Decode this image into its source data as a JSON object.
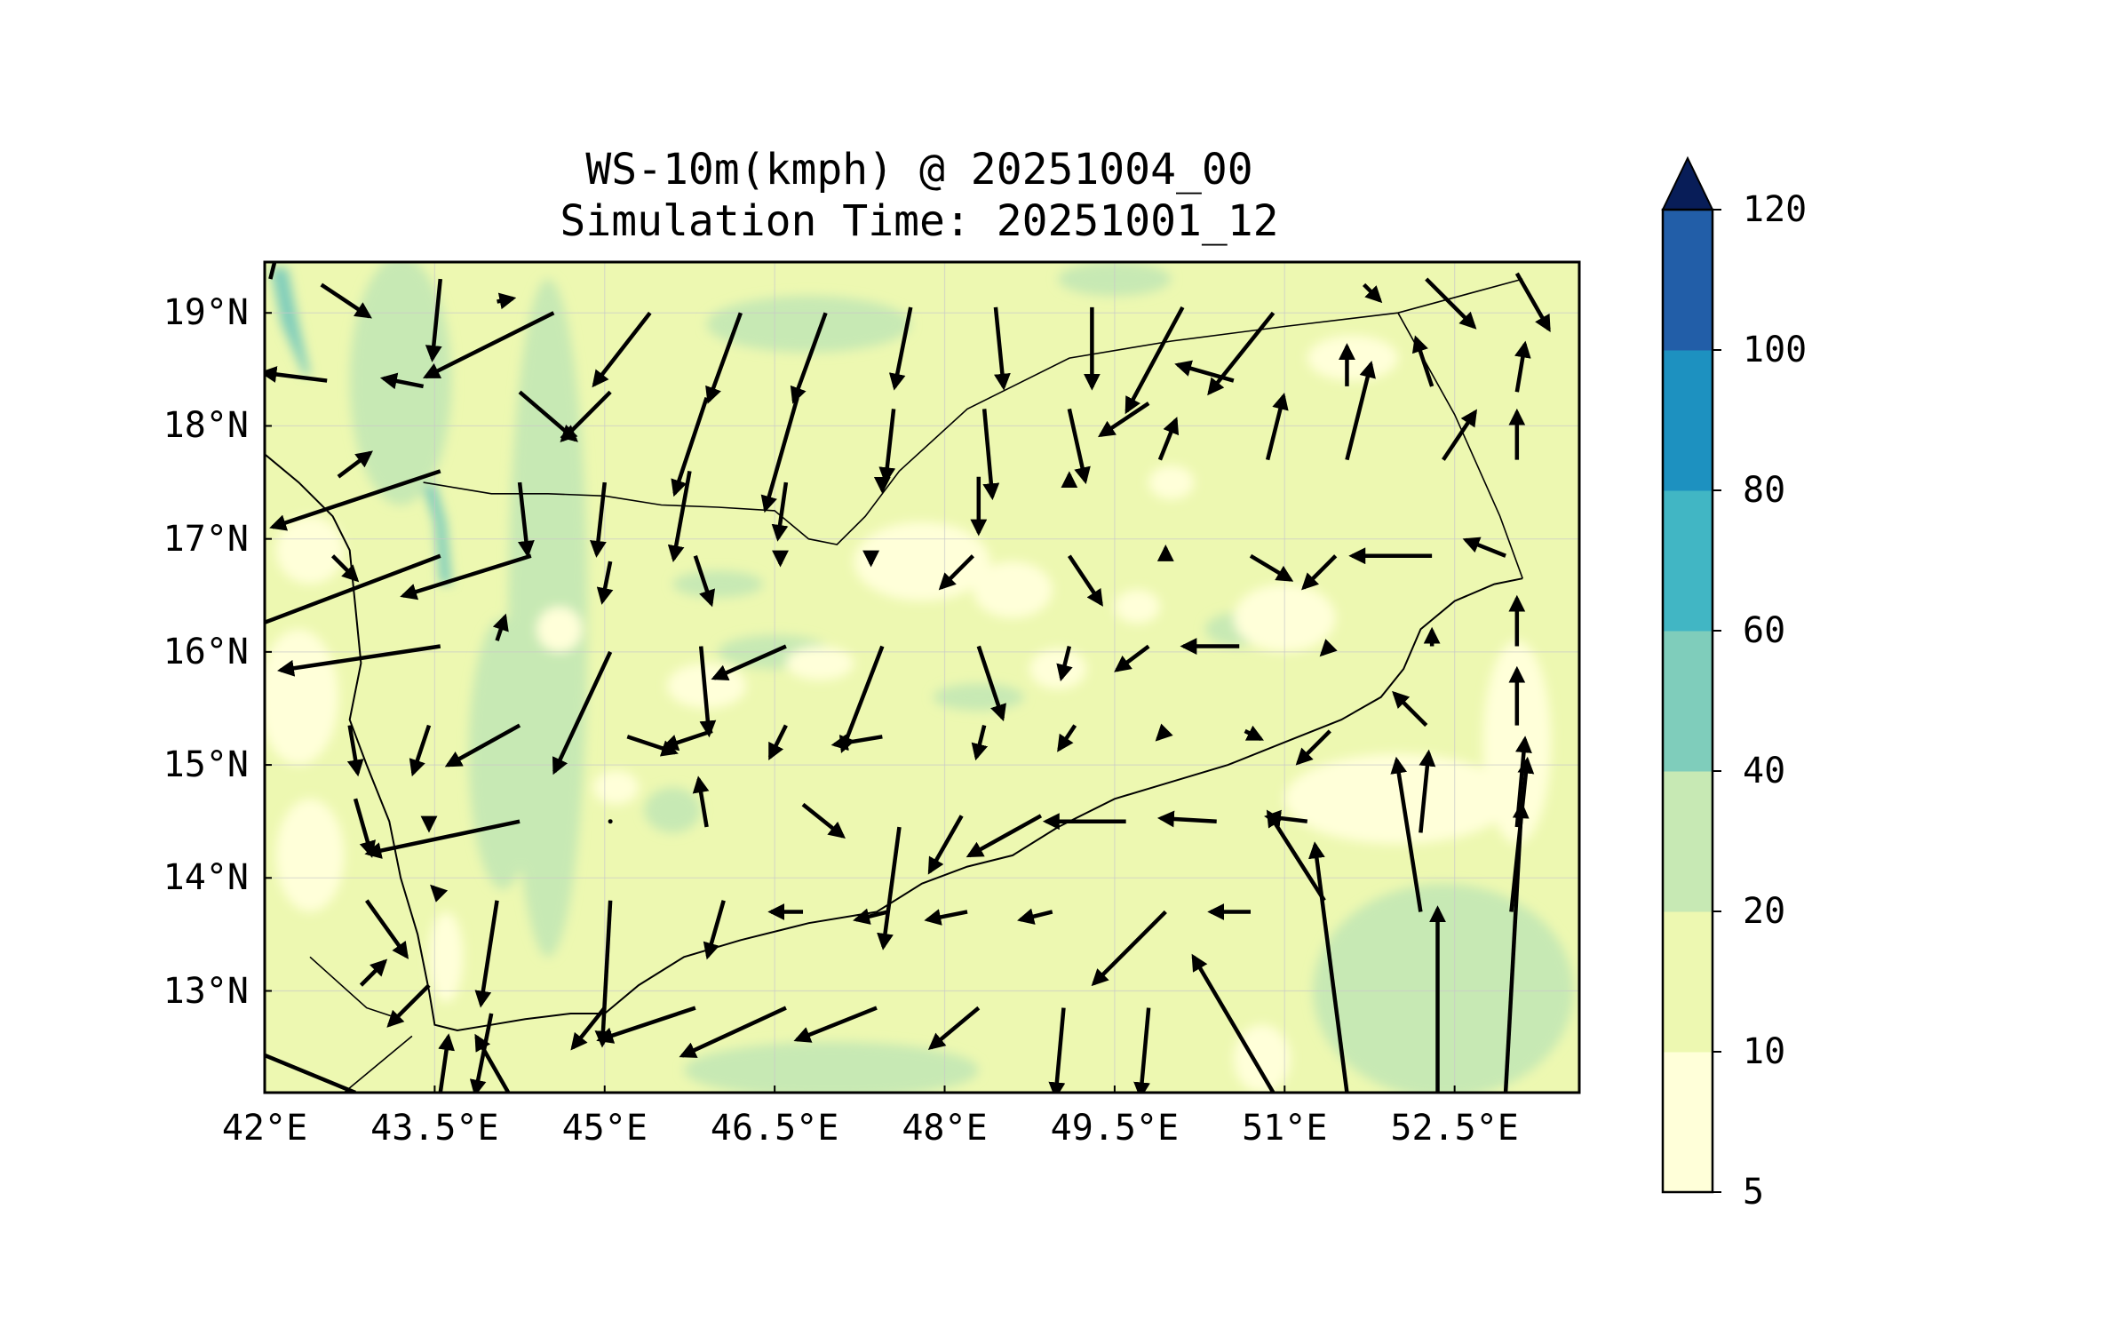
{
  "map": {
    "title": "WS-10m(kmph) @ 20251004_00",
    "subtitle": "Simulation Time: 20251001_12",
    "variable": "10 m wind speed",
    "units": "kmph",
    "valid_time": "20251004_00",
    "simulation_time": "20251001_12",
    "extent": {
      "lon_min": 42.0,
      "lon_max": 53.6,
      "lat_min": 12.1,
      "lat_max": 19.45
    },
    "x_ticks": [
      {
        "value": 42.0,
        "label": "42°E"
      },
      {
        "value": 43.5,
        "label": "43.5°E"
      },
      {
        "value": 45.0,
        "label": "45°E"
      },
      {
        "value": 46.5,
        "label": "46.5°E"
      },
      {
        "value": 48.0,
        "label": "48°E"
      },
      {
        "value": 49.5,
        "label": "49.5°E"
      },
      {
        "value": 51.0,
        "label": "51°E"
      },
      {
        "value": 52.5,
        "label": "52.5°E"
      }
    ],
    "y_ticks": [
      {
        "value": 19,
        "label": "19°N"
      },
      {
        "value": 18,
        "label": "18°N"
      },
      {
        "value": 17,
        "label": "17°N"
      },
      {
        "value": 16,
        "label": "16°N"
      },
      {
        "value": 15,
        "label": "15°N"
      },
      {
        "value": 14,
        "label": "14°N"
      },
      {
        "value": 13,
        "label": "13°N"
      }
    ],
    "gridlines": true,
    "colorbar": {
      "position": "right",
      "extend": "max",
      "levels": [
        5,
        10,
        20,
        40,
        60,
        80,
        100,
        120
      ],
      "labels": [
        "5",
        "10",
        "20",
        "40",
        "60",
        "80",
        "100",
        "120"
      ],
      "colors": [
        "#ffffd9",
        "#edf8b1",
        "#c7e9b4",
        "#7fcdbb",
        "#41b6c4",
        "#1d91c0",
        "#225ea8",
        "#253494"
      ],
      "over_color": "#081d58"
    },
    "palette": {
      "c5": "#ffffd9",
      "c10": "#edf8b1",
      "c20": "#c7e9b4",
      "c40": "#7fcdbb",
      "c60": "#41b6c4"
    },
    "coastline": [
      [
        42.0,
        17.75
      ],
      [
        42.3,
        17.5
      ],
      [
        42.6,
        17.2
      ],
      [
        42.75,
        16.9
      ],
      [
        42.8,
        16.4
      ],
      [
        42.85,
        15.9
      ],
      [
        42.75,
        15.4
      ],
      [
        42.9,
        15.0
      ],
      [
        43.1,
        14.5
      ],
      [
        43.2,
        14.0
      ],
      [
        43.35,
        13.5
      ],
      [
        43.45,
        13.0
      ],
      [
        43.5,
        12.7
      ],
      [
        43.7,
        12.65
      ],
      [
        44.0,
        12.7
      ],
      [
        44.3,
        12.75
      ],
      [
        44.7,
        12.8
      ],
      [
        45.0,
        12.8
      ],
      [
        45.3,
        13.05
      ],
      [
        45.7,
        13.3
      ],
      [
        46.2,
        13.45
      ],
      [
        46.8,
        13.6
      ],
      [
        47.4,
        13.7
      ],
      [
        47.8,
        13.95
      ],
      [
        48.2,
        14.1
      ],
      [
        48.6,
        14.2
      ],
      [
        49.0,
        14.45
      ],
      [
        49.5,
        14.7
      ],
      [
        50.0,
        14.85
      ],
      [
        50.5,
        15.0
      ],
      [
        51.0,
        15.2
      ],
      [
        51.5,
        15.4
      ],
      [
        51.85,
        15.6
      ],
      [
        52.05,
        15.85
      ],
      [
        52.2,
        16.2
      ],
      [
        52.5,
        16.45
      ],
      [
        52.85,
        16.6
      ],
      [
        53.1,
        16.65
      ]
    ],
    "borders": [
      [
        [
          43.4,
          17.5
        ],
        [
          43.7,
          17.45
        ],
        [
          44.0,
          17.4
        ],
        [
          44.5,
          17.4
        ],
        [
          45.0,
          17.38
        ],
        [
          45.5,
          17.3
        ],
        [
          46.0,
          17.28
        ],
        [
          46.5,
          17.25
        ],
        [
          46.8,
          17.0
        ],
        [
          47.05,
          16.95
        ],
        [
          47.3,
          17.2
        ],
        [
          47.6,
          17.6
        ],
        [
          48.2,
          18.15
        ],
        [
          49.1,
          18.6
        ],
        [
          50.0,
          18.75
        ],
        [
          51.0,
          18.88
        ],
        [
          52.0,
          19.0
        ],
        [
          53.1,
          19.3
        ]
      ],
      [
        [
          52.0,
          19.0
        ],
        [
          52.5,
          18.1
        ],
        [
          52.9,
          17.2
        ],
        [
          53.1,
          16.65
        ]
      ],
      [
        [
          42.7,
          12.1
        ],
        [
          43.3,
          12.6
        ]
      ],
      [
        [
          42.4,
          13.3
        ],
        [
          42.9,
          12.85
        ],
        [
          43.2,
          12.75
        ]
      ]
    ],
    "wind_arrows_note": "direction and magnitude of 10 m wind vectors",
    "wind_vectors": [
      [
        42.05,
        19.3,
        0.1,
        0.4
      ],
      [
        42.5,
        19.25,
        0.3,
        -0.2
      ],
      [
        43.55,
        19.3,
        -0.05,
        -0.5
      ],
      [
        44.05,
        19.1,
        0.1,
        0.02
      ],
      [
        44.55,
        19.0,
        -0.8,
        -0.4
      ],
      [
        45.4,
        19.0,
        -0.35,
        -0.45
      ],
      [
        46.2,
        19.0,
        -0.2,
        -0.55
      ],
      [
        46.95,
        19.0,
        -0.2,
        -0.55
      ],
      [
        47.7,
        19.05,
        -0.1,
        -0.5
      ],
      [
        48.45,
        19.05,
        0.05,
        -0.5
      ],
      [
        49.3,
        19.05,
        0.0,
        -0.5
      ],
      [
        50.1,
        19.05,
        -0.35,
        -0.65
      ],
      [
        50.9,
        19.0,
        -0.4,
        -0.5
      ],
      [
        51.7,
        19.25,
        0.1,
        -0.1
      ],
      [
        52.25,
        19.3,
        0.3,
        -0.3
      ],
      [
        53.05,
        19.35,
        0.2,
        -0.35
      ],
      [
        42.55,
        18.4,
        -0.4,
        0.05
      ],
      [
        43.4,
        18.35,
        -0.25,
        0.05
      ],
      [
        44.25,
        18.3,
        0.35,
        -0.3
      ],
      [
        45.05,
        18.3,
        -0.3,
        -0.3
      ],
      [
        45.9,
        18.25,
        -0.2,
        -0.6
      ],
      [
        46.7,
        18.25,
        -0.2,
        -0.7
      ],
      [
        47.55,
        18.15,
        -0.05,
        -0.45
      ],
      [
        48.35,
        18.15,
        0.05,
        -0.55
      ],
      [
        49.1,
        18.15,
        0.1,
        -0.45
      ],
      [
        49.8,
        18.2,
        -0.3,
        -0.2
      ],
      [
        50.55,
        18.4,
        -0.35,
        0.1
      ],
      [
        51.55,
        18.35,
        0.0,
        0.25
      ],
      [
        52.3,
        18.35,
        -0.1,
        0.3
      ],
      [
        53.05,
        18.3,
        0.05,
        0.3
      ],
      [
        42.65,
        17.55,
        0.2,
        0.15
      ],
      [
        43.55,
        17.6,
        -1.05,
        -0.35
      ],
      [
        44.25,
        17.5,
        0.05,
        -0.45
      ],
      [
        45.0,
        17.5,
        -0.05,
        -0.45
      ],
      [
        45.75,
        17.6,
        -0.1,
        -0.55
      ],
      [
        46.6,
        17.5,
        -0.05,
        -0.35
      ],
      [
        47.45,
        17.5,
        0.0,
        -0.05
      ],
      [
        48.3,
        17.55,
        0.0,
        -0.35
      ],
      [
        49.1,
        17.5,
        0.0,
        0.05
      ],
      [
        49.9,
        17.7,
        0.1,
        0.25
      ],
      [
        50.85,
        17.7,
        0.1,
        0.4
      ],
      [
        51.55,
        17.7,
        0.15,
        0.6
      ],
      [
        52.4,
        17.7,
        0.2,
        0.3
      ],
      [
        53.05,
        17.7,
        0.0,
        0.3
      ],
      [
        42.6,
        16.85,
        0.15,
        -0.15
      ],
      [
        43.55,
        16.85,
        -1.45,
        -0.55
      ],
      [
        44.35,
        16.85,
        -0.8,
        -0.25
      ],
      [
        45.05,
        16.8,
        -0.05,
        -0.25
      ],
      [
        45.8,
        16.85,
        0.1,
        -0.3
      ],
      [
        46.55,
        16.85,
        0.0,
        -0.05
      ],
      [
        47.35,
        16.85,
        0.0,
        -0.05
      ],
      [
        48.25,
        16.85,
        -0.2,
        -0.2
      ],
      [
        49.1,
        16.85,
        0.2,
        -0.3
      ],
      [
        49.95,
        16.85,
        0.0,
        0.05
      ],
      [
        50.7,
        16.85,
        0.25,
        -0.15
      ],
      [
        51.45,
        16.85,
        -0.2,
        -0.2
      ],
      [
        52.3,
        16.85,
        -0.5,
        0.0
      ],
      [
        52.95,
        16.85,
        -0.25,
        0.1
      ],
      [
        43.55,
        16.05,
        -1.0,
        -0.15
      ],
      [
        44.05,
        16.1,
        0.05,
        0.15
      ],
      [
        45.05,
        16.0,
        -0.35,
        -0.75
      ],
      [
        45.85,
        16.05,
        0.05,
        -0.55
      ],
      [
        46.6,
        16.05,
        -0.45,
        -0.2
      ],
      [
        47.45,
        16.05,
        -0.25,
        -0.65
      ],
      [
        48.3,
        16.05,
        0.15,
        -0.45
      ],
      [
        49.1,
        16.05,
        -0.05,
        -0.2
      ],
      [
        49.8,
        16.05,
        -0.2,
        -0.15
      ],
      [
        50.6,
        16.05,
        -0.35,
        0.0
      ],
      [
        51.4,
        16.05,
        -0.05,
        -0.05
      ],
      [
        52.3,
        16.05,
        0.0,
        0.1
      ],
      [
        53.05,
        16.05,
        0.0,
        0.3
      ],
      [
        42.75,
        15.35,
        0.05,
        -0.3
      ],
      [
        43.45,
        15.35,
        -0.1,
        -0.3
      ],
      [
        44.25,
        15.35,
        -0.45,
        -0.25
      ],
      [
        45.2,
        15.25,
        0.3,
        -0.1
      ],
      [
        45.95,
        15.3,
        -0.3,
        -0.1
      ],
      [
        46.6,
        15.35,
        -0.1,
        -0.2
      ],
      [
        47.45,
        15.25,
        -0.3,
        -0.05
      ],
      [
        48.35,
        15.35,
        -0.05,
        -0.2
      ],
      [
        49.15,
        15.35,
        -0.1,
        -0.15
      ],
      [
        49.95,
        15.3,
        -0.05,
        -0.05
      ],
      [
        50.65,
        15.3,
        0.1,
        -0.05
      ],
      [
        51.4,
        15.3,
        -0.2,
        -0.2
      ],
      [
        52.25,
        15.35,
        -0.2,
        0.2
      ],
      [
        53.05,
        15.35,
        0.0,
        0.35
      ],
      [
        42.8,
        14.7,
        0.1,
        -0.35
      ],
      [
        43.45,
        14.5,
        0.0,
        -0.05
      ],
      [
        44.25,
        14.5,
        -0.95,
        -0.2
      ],
      [
        45.05,
        14.5,
        0.0,
        0.0
      ],
      [
        45.9,
        14.45,
        -0.05,
        0.3
      ],
      [
        46.75,
        14.65,
        0.25,
        -0.2
      ],
      [
        47.6,
        14.45,
        -0.1,
        -0.75
      ],
      [
        48.15,
        14.55,
        -0.2,
        -0.35
      ],
      [
        48.85,
        14.55,
        -0.45,
        -0.25
      ],
      [
        49.6,
        14.5,
        -0.5,
        0.0
      ],
      [
        50.4,
        14.5,
        -0.35,
        0.02
      ],
      [
        51.2,
        14.5,
        -0.25,
        0.03
      ],
      [
        52.2,
        14.4,
        0.05,
        0.5
      ],
      [
        53.05,
        14.45,
        0.05,
        0.55
      ],
      [
        42.9,
        13.8,
        0.25,
        -0.35
      ],
      [
        43.55,
        13.85,
        -0.05,
        0.05
      ],
      [
        44.05,
        13.8,
        -0.1,
        -0.65
      ],
      [
        45.05,
        13.8,
        -0.05,
        -0.9
      ],
      [
        46.05,
        13.8,
        -0.1,
        -0.35
      ],
      [
        46.75,
        13.7,
        -0.2,
        0.0
      ],
      [
        47.5,
        13.7,
        -0.2,
        -0.05
      ],
      [
        48.2,
        13.7,
        -0.25,
        -0.05
      ],
      [
        48.95,
        13.7,
        -0.2,
        -0.05
      ],
      [
        49.95,
        13.7,
        -0.45,
        -0.45
      ],
      [
        50.7,
        13.7,
        -0.25,
        0.0
      ],
      [
        51.35,
        13.8,
        -0.35,
        0.55
      ],
      [
        52.2,
        13.7,
        -0.15,
        0.95
      ],
      [
        53.0,
        13.7,
        0.1,
        0.95
      ],
      [
        42.85,
        13.05,
        0.15,
        0.15
      ],
      [
        43.45,
        13.05,
        -0.25,
        -0.25
      ],
      [
        44.0,
        12.8,
        -0.1,
        -0.5
      ],
      [
        45.0,
        12.85,
        -0.2,
        -0.25
      ],
      [
        45.8,
        12.85,
        -0.6,
        -0.2
      ],
      [
        46.6,
        12.85,
        -0.65,
        -0.3
      ],
      [
        47.4,
        12.85,
        -0.5,
        -0.2
      ],
      [
        48.3,
        12.85,
        -0.3,
        -0.25
      ],
      [
        49.05,
        12.85,
        -0.05,
        -0.55
      ],
      [
        49.8,
        12.85,
        -0.05,
        -0.55
      ],
      [
        50.9,
        12.1,
        -0.5,
        0.85
      ],
      [
        51.55,
        12.1,
        -0.2,
        1.55
      ],
      [
        52.35,
        12.1,
        0.0,
        1.15
      ],
      [
        52.95,
        12.1,
        0.1,
        1.8
      ],
      [
        42.8,
        12.1,
        -0.85,
        0.35
      ],
      [
        43.55,
        12.1,
        0.05,
        0.35
      ],
      [
        44.15,
        12.1,
        -0.2,
        0.35
      ]
    ]
  }
}
